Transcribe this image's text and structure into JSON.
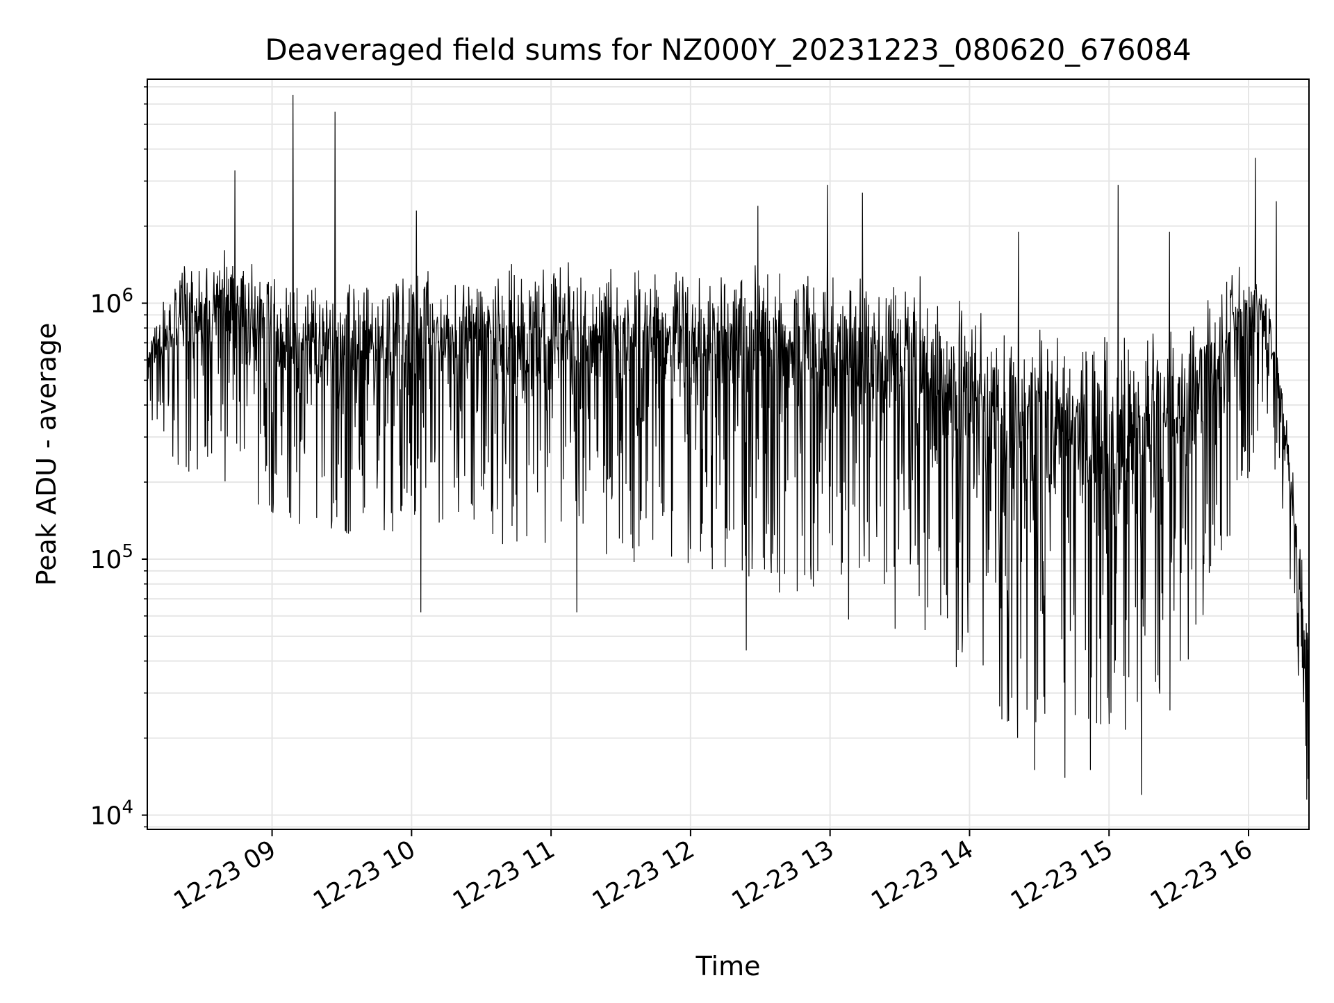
{
  "chart_data": {
    "type": "line",
    "title": "Deaveraged field sums for NZ000Y_20231223_080620_676084",
    "xlabel": "Time",
    "ylabel": "Peak ADU - average",
    "yscale": "log",
    "ylim": [
      8800,
      7500000
    ],
    "xlim": [
      "2023-12-23 08:06:20",
      "2023-12-23 16:26:00"
    ],
    "grid": true,
    "line_color": "#000000",
    "grid_color": "#e6e6e6",
    "x_ticks": [
      {
        "value": "2023-12-23 09:00",
        "label": "12-23 09"
      },
      {
        "value": "2023-12-23 10:00",
        "label": "12-23 10"
      },
      {
        "value": "2023-12-23 11:00",
        "label": "12-23 11"
      },
      {
        "value": "2023-12-23 12:00",
        "label": "12-23 12"
      },
      {
        "value": "2023-12-23 13:00",
        "label": "12-23 13"
      },
      {
        "value": "2023-12-23 14:00",
        "label": "12-23 14"
      },
      {
        "value": "2023-12-23 15:00",
        "label": "12-23 15"
      },
      {
        "value": "2023-12-23 16:00",
        "label": "12-23 16"
      }
    ],
    "y_ticks": [
      {
        "value": 10000,
        "base": "10",
        "exp": "4"
      },
      {
        "value": 100000,
        "base": "10",
        "exp": "5"
      },
      {
        "value": 1000000,
        "base": "10",
        "exp": "6"
      }
    ],
    "series": [
      {
        "time_start": "2023-12-23 08:06:20",
        "time_end": "2023-12-23 16:26:00",
        "baseline_envelope": [
          {
            "t": "2023-12-23 08:06:20",
            "low": 350000,
            "high": 750000
          },
          {
            "t": "2023-12-23 08:20",
            "low": 200000,
            "high": 1500000
          },
          {
            "t": "2023-12-23 08:40",
            "low": 200000,
            "high": 1700000
          },
          {
            "t": "2023-12-23 09:00",
            "low": 150000,
            "high": 1500000
          },
          {
            "t": "2023-12-23 09:20",
            "low": 120000,
            "high": 1200000
          },
          {
            "t": "2023-12-23 10:00",
            "low": 130000,
            "high": 1400000
          },
          {
            "t": "2023-12-23 11:00",
            "low": 100000,
            "high": 1500000
          },
          {
            "t": "2023-12-23 12:00",
            "low": 90000,
            "high": 1500000
          },
          {
            "t": "2023-12-23 13:00",
            "low": 60000,
            "high": 1400000
          },
          {
            "t": "2023-12-23 13:40",
            "low": 50000,
            "high": 1300000
          },
          {
            "t": "2023-12-23 14:00",
            "low": 30000,
            "high": 1000000
          },
          {
            "t": "2023-12-23 14:20",
            "low": 20000,
            "high": 850000
          },
          {
            "t": "2023-12-23 15:00",
            "low": 20000,
            "high": 800000
          },
          {
            "t": "2023-12-23 15:30",
            "low": 25000,
            "high": 900000
          },
          {
            "t": "2023-12-23 15:50",
            "low": 100000,
            "high": 1400000
          },
          {
            "t": "2023-12-23 16:05",
            "low": 300000,
            "high": 1500000
          },
          {
            "t": "2023-12-23 16:15",
            "low": 150000,
            "high": 500000
          },
          {
            "t": "2023-12-23 16:26",
            "low": 12000,
            "high": 60000
          }
        ],
        "peaks": [
          {
            "t": "2023-12-23 08:44",
            "y": 3300000
          },
          {
            "t": "2023-12-23 09:09",
            "y": 6500000
          },
          {
            "t": "2023-12-23 09:27",
            "y": 5600000
          },
          {
            "t": "2023-12-23 10:02",
            "y": 2300000
          },
          {
            "t": "2023-12-23 12:29",
            "y": 2400000
          },
          {
            "t": "2023-12-23 12:59",
            "y": 2900000
          },
          {
            "t": "2023-12-23 13:14",
            "y": 2700000
          },
          {
            "t": "2023-12-23 14:21",
            "y": 1900000
          },
          {
            "t": "2023-12-23 15:04",
            "y": 2900000
          },
          {
            "t": "2023-12-23 15:26",
            "y": 1900000
          },
          {
            "t": "2023-12-23 16:03",
            "y": 3700000
          },
          {
            "t": "2023-12-23 16:12",
            "y": 2500000
          }
        ],
        "troughs": [
          {
            "t": "2023-12-23 10:04",
            "y": 62000
          },
          {
            "t": "2023-12-23 11:11",
            "y": 62000
          },
          {
            "t": "2023-12-23 12:24",
            "y": 44000
          },
          {
            "t": "2023-12-23 14:28",
            "y": 15000
          },
          {
            "t": "2023-12-23 14:41",
            "y": 14000
          },
          {
            "t": "2023-12-23 14:52",
            "y": 15000
          },
          {
            "t": "2023-12-23 15:14",
            "y": 12000
          },
          {
            "t": "2023-12-23 16:25",
            "y": 11500
          }
        ]
      }
    ]
  }
}
